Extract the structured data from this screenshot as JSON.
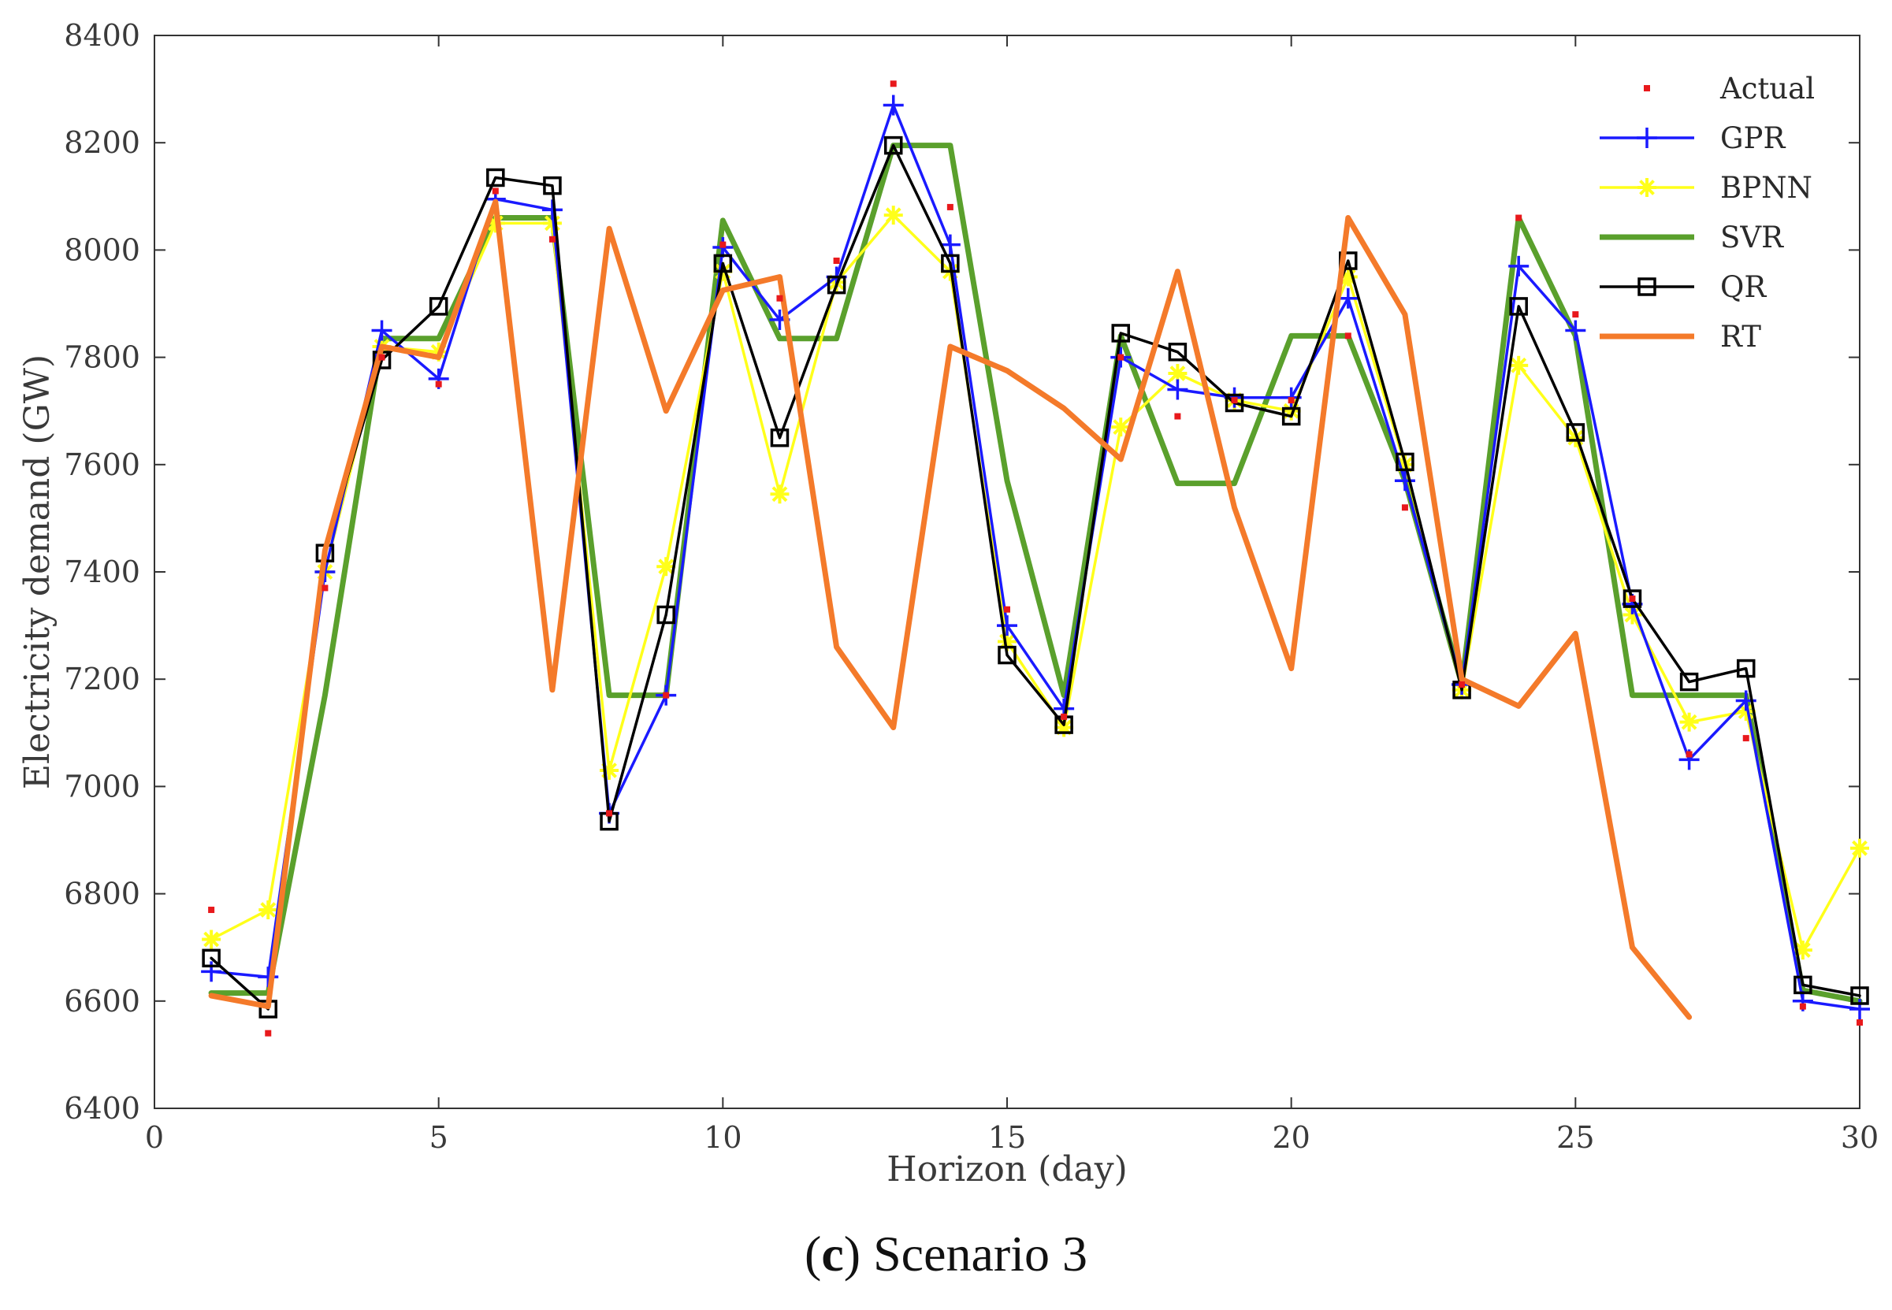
{
  "caption": {
    "open": "(",
    "letter": "c",
    "close": ")",
    "text": " Scenario 3"
  },
  "chart_data": {
    "type": "line",
    "title": "",
    "xlabel": "Horizon (day)",
    "ylabel": "Electricity demand (GW)",
    "xlim": [
      0,
      30
    ],
    "ylim": [
      6400,
      8400
    ],
    "xticks": [
      0,
      5,
      10,
      15,
      20,
      25,
      30
    ],
    "yticks": [
      6400,
      6600,
      6800,
      7000,
      7200,
      7400,
      7600,
      7800,
      8000,
      8200,
      8400
    ],
    "grid": false,
    "legend_position": "top-right",
    "series": [
      {
        "name": "Actual",
        "style": "dots",
        "color": "#e8191c",
        "marker": "dot",
        "x": [
          1,
          2,
          3,
          4,
          5,
          6,
          7,
          8,
          9,
          10,
          11,
          12,
          13,
          14,
          15,
          16,
          17,
          18,
          19,
          20,
          21,
          22,
          23,
          24,
          25,
          26,
          27,
          28,
          29,
          30
        ],
        "values": [
          6770,
          6540,
          7370,
          7800,
          7750,
          8110,
          8020,
          6950,
          7170,
          8010,
          7910,
          7980,
          8310,
          8080,
          7330,
          7130,
          7800,
          7690,
          7720,
          7720,
          7840,
          7520,
          7190,
          8060,
          7880,
          7350,
          7060,
          7090,
          6590,
          6560
        ]
      },
      {
        "name": "GPR",
        "style": "line",
        "color": "#1a1aff",
        "marker": "plus",
        "x": [
          1,
          2,
          3,
          4,
          5,
          6,
          7,
          8,
          9,
          10,
          11,
          12,
          13,
          14,
          15,
          16,
          17,
          18,
          19,
          20,
          21,
          22,
          23,
          24,
          25,
          26,
          27,
          28,
          29,
          30
        ],
        "values": [
          6655,
          6645,
          7400,
          7850,
          7760,
          8095,
          8075,
          6950,
          7170,
          8005,
          7870,
          7950,
          8270,
          8010,
          7300,
          7145,
          7800,
          7740,
          7725,
          7725,
          7910,
          7570,
          7190,
          7970,
          7850,
          7340,
          7050,
          7160,
          6600,
          6585
        ]
      },
      {
        "name": "BPNN",
        "style": "line",
        "color": "#ffff1a",
        "marker": "asterisk",
        "x": [
          1,
          2,
          3,
          4,
          5,
          6,
          7,
          8,
          9,
          10,
          11,
          12,
          13,
          14,
          15,
          16,
          17,
          18,
          19,
          20,
          21,
          22,
          23,
          24,
          25,
          26,
          27,
          28,
          29,
          30
        ],
        "values": [
          6715,
          6770,
          7400,
          7820,
          7810,
          8050,
          8050,
          7030,
          7410,
          7960,
          7545,
          7940,
          8065,
          7960,
          7270,
          7110,
          7670,
          7770,
          7720,
          7700,
          7950,
          7600,
          7180,
          7785,
          7650,
          7320,
          7120,
          7140,
          6695,
          6885
        ]
      },
      {
        "name": "SVR",
        "style": "line",
        "color": "#5aa02c",
        "marker": "none",
        "x": [
          1,
          2,
          3,
          4,
          5,
          6,
          7,
          8,
          9,
          10,
          11,
          12,
          13,
          14,
          15,
          16,
          17,
          18,
          19,
          20,
          21,
          22,
          23,
          24,
          25,
          26,
          27,
          28,
          29,
          30
        ],
        "values": [
          6615,
          6615,
          7170,
          7835,
          7835,
          8060,
          8060,
          7170,
          7170,
          8055,
          7835,
          7835,
          8195,
          8195,
          7570,
          7170,
          7840,
          7565,
          7565,
          7840,
          7840,
          7570,
          7190,
          8060,
          7840,
          7170,
          7170,
          7170,
          6620,
          6600
        ]
      },
      {
        "name": "QR",
        "style": "line",
        "color": "#000000",
        "marker": "square",
        "x": [
          1,
          2,
          3,
          4,
          5,
          6,
          7,
          8,
          9,
          10,
          11,
          12,
          13,
          14,
          15,
          16,
          17,
          18,
          19,
          20,
          21,
          22,
          23,
          24,
          25,
          26,
          27,
          28,
          29,
          30
        ],
        "values": [
          6680,
          6585,
          7435,
          7795,
          7895,
          8135,
          8120,
          6935,
          7320,
          7975,
          7650,
          7935,
          8195,
          7975,
          7245,
          7115,
          7845,
          7810,
          7715,
          7690,
          7980,
          7605,
          7180,
          7895,
          7660,
          7350,
          7195,
          7220,
          6630,
          6610
        ]
      },
      {
        "name": "RT",
        "style": "line",
        "color": "#f47a2a",
        "marker": "none",
        "x": [
          1,
          2,
          3,
          4,
          5,
          6,
          7,
          8,
          9,
          10,
          11,
          12,
          13,
          14,
          15,
          16,
          17,
          18,
          19,
          20,
          21,
          22,
          23,
          24,
          25,
          26,
          27
        ],
        "values": [
          6610,
          6590,
          7440,
          7820,
          7800,
          8090,
          7180,
          8040,
          7700,
          7925,
          7950,
          7260,
          7110,
          7820,
          7775,
          7705,
          7610,
          7960,
          7520,
          7220,
          8060,
          7880,
          7200,
          7150,
          7285,
          6700,
          6570
        ]
      }
    ]
  }
}
